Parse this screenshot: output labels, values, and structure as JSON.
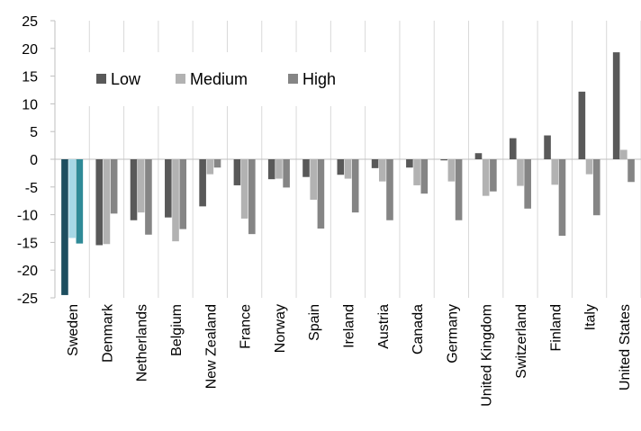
{
  "chart_data": {
    "type": "bar",
    "categories": [
      "Sweden",
      "Denmark",
      "Netherlands",
      "Belgium",
      "New Zealand",
      "France",
      "Norway",
      "Spain",
      "Ireland",
      "Austria",
      "Canada",
      "Germany",
      "United Kingdom",
      "Switzerland",
      "Finland",
      "Italy",
      "United States"
    ],
    "series": [
      {
        "name": "Low",
        "values": [
          -24.5,
          -15.5,
          -11.0,
          -10.5,
          -8.5,
          -4.7,
          -3.6,
          -3.2,
          -2.8,
          -1.6,
          -1.5,
          -0.2,
          1.1,
          3.8,
          4.3,
          12.2,
          19.3
        ]
      },
      {
        "name": "Medium",
        "values": [
          -14.2,
          -15.3,
          -9.6,
          -14.8,
          -2.7,
          -10.7,
          -3.5,
          -7.3,
          -3.5,
          -4.0,
          -4.7,
          -4.0,
          -6.6,
          -4.8,
          -4.6,
          -2.7,
          1.7
        ]
      },
      {
        "name": "High",
        "values": [
          -15.2,
          -9.8,
          -13.6,
          -12.6,
          -1.5,
          -13.5,
          -5.1,
          -12.5,
          -9.6,
          -11.0,
          -6.2,
          -11.0,
          -5.8,
          -8.9,
          -13.8,
          -10.1,
          -4.1
        ]
      }
    ],
    "ylim": [
      -25,
      25
    ],
    "yticks": [
      25,
      20,
      15,
      10,
      5,
      0,
      -5,
      -10,
      -15,
      -20,
      -25
    ],
    "legend_position": "top-left",
    "colors": {
      "Low": "#595959",
      "Medium": "#b2b2b2",
      "High": "#858585"
    },
    "highlight": {
      "category": "Sweden",
      "colors": {
        "Low": "#1d4e5f",
        "Medium": "#a6d8e6",
        "High": "#2f8a97"
      }
    },
    "grid": "vertical-category-lines"
  }
}
